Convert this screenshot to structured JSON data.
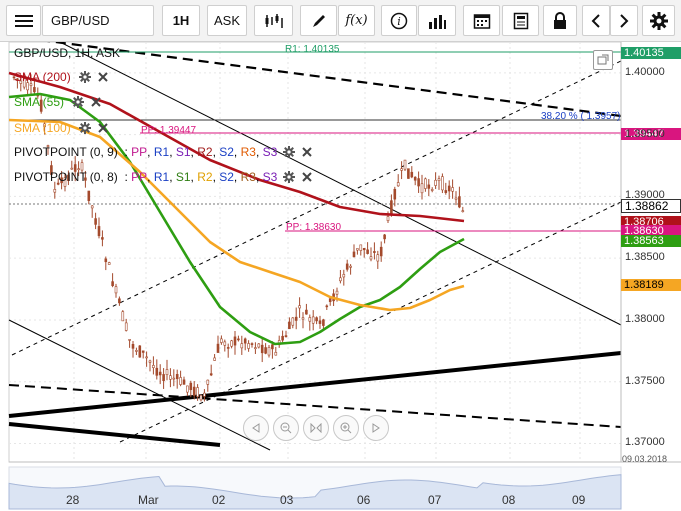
{
  "toolbar": {
    "symbol": "GBP/USD",
    "timeframe": "1H",
    "price_type": "ASK",
    "icons": [
      "menu-icon",
      "candles-icon",
      "pencil-icon",
      "fx-icon",
      "info-icon",
      "bar-chart-icon",
      "calendar-icon",
      "document-icon",
      "lock-icon",
      "chevron-left-icon",
      "chevron-right-icon",
      "gear-icon"
    ]
  },
  "chart_header": {
    "title": "GBP/USD, 1H, ASK"
  },
  "indicators": [
    {
      "label": "SMA (200)",
      "color": "#b0121b"
    },
    {
      "label": "SMA (55)",
      "color": "#2e9e12"
    },
    {
      "label": "SMA (100)",
      "color": "#f5a623"
    }
  ],
  "pivots": [
    {
      "label": "PIVOTPOINT (0, 9)",
      "items": [
        {
          "t": "PP",
          "c": "#c0178f"
        },
        {
          "t": "R1",
          "c": "#1a3fc4"
        },
        {
          "t": "S1",
          "c": "#7a1fb5"
        },
        {
          "t": "R2",
          "c": "#a01a1a"
        },
        {
          "t": "S2",
          "c": "#1a3fc4"
        },
        {
          "t": "R3",
          "c": "#e05a00"
        },
        {
          "t": "S3",
          "c": "#7a1fb5"
        }
      ]
    },
    {
      "label": "PIVOTPOINT (0, 8)",
      "items": [
        {
          "t": "PP",
          "c": "#c0178f"
        },
        {
          "t": "R1",
          "c": "#1a3fc4"
        },
        {
          "t": "S1",
          "c": "#2e7d12"
        },
        {
          "t": "R2",
          "c": "#e0a000"
        },
        {
          "t": "S2",
          "c": "#1a3fc4"
        },
        {
          "t": "R3",
          "c": "#a06020"
        },
        {
          "t": "S3",
          "c": "#7a1fb5"
        }
      ]
    }
  ],
  "annotations": {
    "r1": "R1: 1.40135",
    "fib": "38.20 % ( 1.3957)",
    "pp1": "PP: 1.39447",
    "pp2": "PP: 1.38630"
  },
  "price_labels": [
    {
      "text": "1.40135",
      "bg": "#1f9e67",
      "fg": "#ffffff"
    },
    {
      "text": "1.39447",
      "bg": "#d9157f",
      "fg": "#ffffff"
    },
    {
      "text": "1.38862",
      "bg": "#ffffff",
      "fg": "#000000"
    },
    {
      "text": "1.38706",
      "bg": "#b0121b",
      "fg": "#ffffff"
    },
    {
      "text": "1.38630",
      "bg": "#d9157f",
      "fg": "#ffffff"
    },
    {
      "text": "1.38563",
      "bg": "#2e9e12",
      "fg": "#ffffff"
    },
    {
      "text": "1.38189",
      "bg": "#f5a623",
      "fg": "#000000"
    }
  ],
  "y_axis": [
    "1.40000",
    "1.39500",
    "1.39000",
    "1.38500",
    "1.38000",
    "1.37500",
    "1.37000"
  ],
  "x_axis": [
    "28",
    "Mar",
    "02",
    "03",
    "06",
    "07",
    "08",
    "09"
  ],
  "date_label": "09.03.2018",
  "chart_data": {
    "type": "candlestick",
    "title": "GBP/USD, 1H, ASK",
    "ylim": [
      1.3685,
      1.4025
    ],
    "series": [
      {
        "name": "SMA (200)",
        "color": "#b0121b"
      },
      {
        "name": "SMA (55)",
        "color": "#2e9e12"
      },
      {
        "name": "SMA (100)",
        "color": "#f5a623"
      }
    ],
    "last_values": {
      "close": 1.38862,
      "sma200": 1.38706,
      "sma55": 1.38563,
      "sma100": 1.38189,
      "pp": 1.3863
    }
  }
}
